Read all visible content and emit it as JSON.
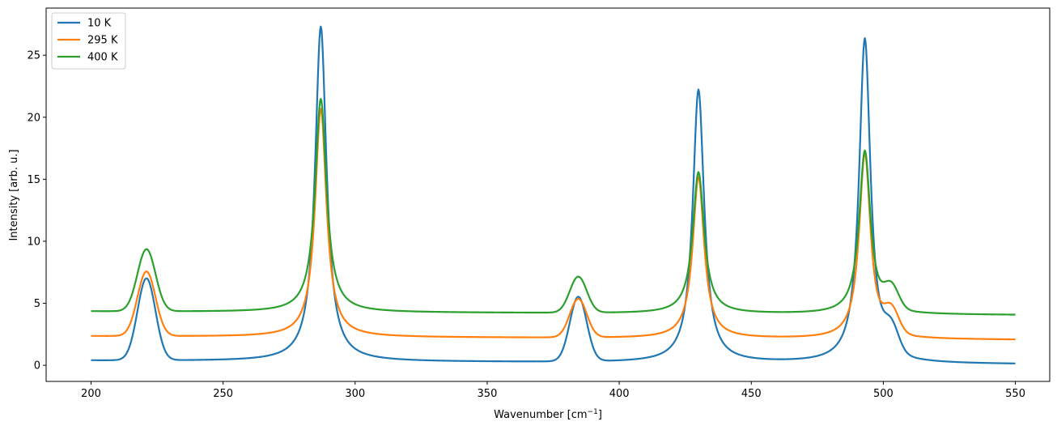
{
  "chart_data": {
    "type": "line",
    "xlabel": "Wavenumber [cm",
    "xlabel_sup": "−1",
    "xlabel_end": "]",
    "ylabel": "Intensity [arb. u.]",
    "xlim": [
      183,
      563
    ],
    "ylim": [
      -1.3,
      28.8
    ],
    "xticks": [
      200,
      250,
      300,
      350,
      400,
      450,
      500,
      550
    ],
    "yticks": [
      0,
      5,
      10,
      15,
      20,
      25
    ],
    "grid": false,
    "legend_position": "top-left",
    "peaks": [
      {
        "center": 221,
        "width": 3.4,
        "shape": "gaussian"
      },
      {
        "center": 287,
        "width": 2.6,
        "shape": "lorentzian"
      },
      {
        "center": 384.5,
        "width": 3.2,
        "shape": "gaussian"
      },
      {
        "center": 430,
        "width": 2.6,
        "shape": "lorentzian"
      },
      {
        "center": 493,
        "width": 2.6,
        "shape": "lorentzian"
      },
      {
        "center": 503,
        "width": 2.8,
        "shape": "gaussian"
      }
    ],
    "series": [
      {
        "name": "10 K",
        "color": "#1f77b4",
        "baseline": [
          0.38,
          0.08
        ],
        "amplitudes": [
          6.6,
          27.0,
          5.2,
          22.0,
          26.2,
          2.0
        ]
      },
      {
        "name": "295 K",
        "color": "#ff7f0e",
        "baseline": [
          2.35,
          2.05
        ],
        "amplitudes": [
          5.2,
          18.4,
          3.1,
          13.0,
          15.0,
          1.9
        ]
      },
      {
        "name": "400 K",
        "color": "#2ca02c",
        "baseline": [
          4.35,
          4.05
        ],
        "amplitudes": [
          5.0,
          17.2,
          2.9,
          11.4,
          13.2,
          1.8
        ]
      }
    ]
  }
}
